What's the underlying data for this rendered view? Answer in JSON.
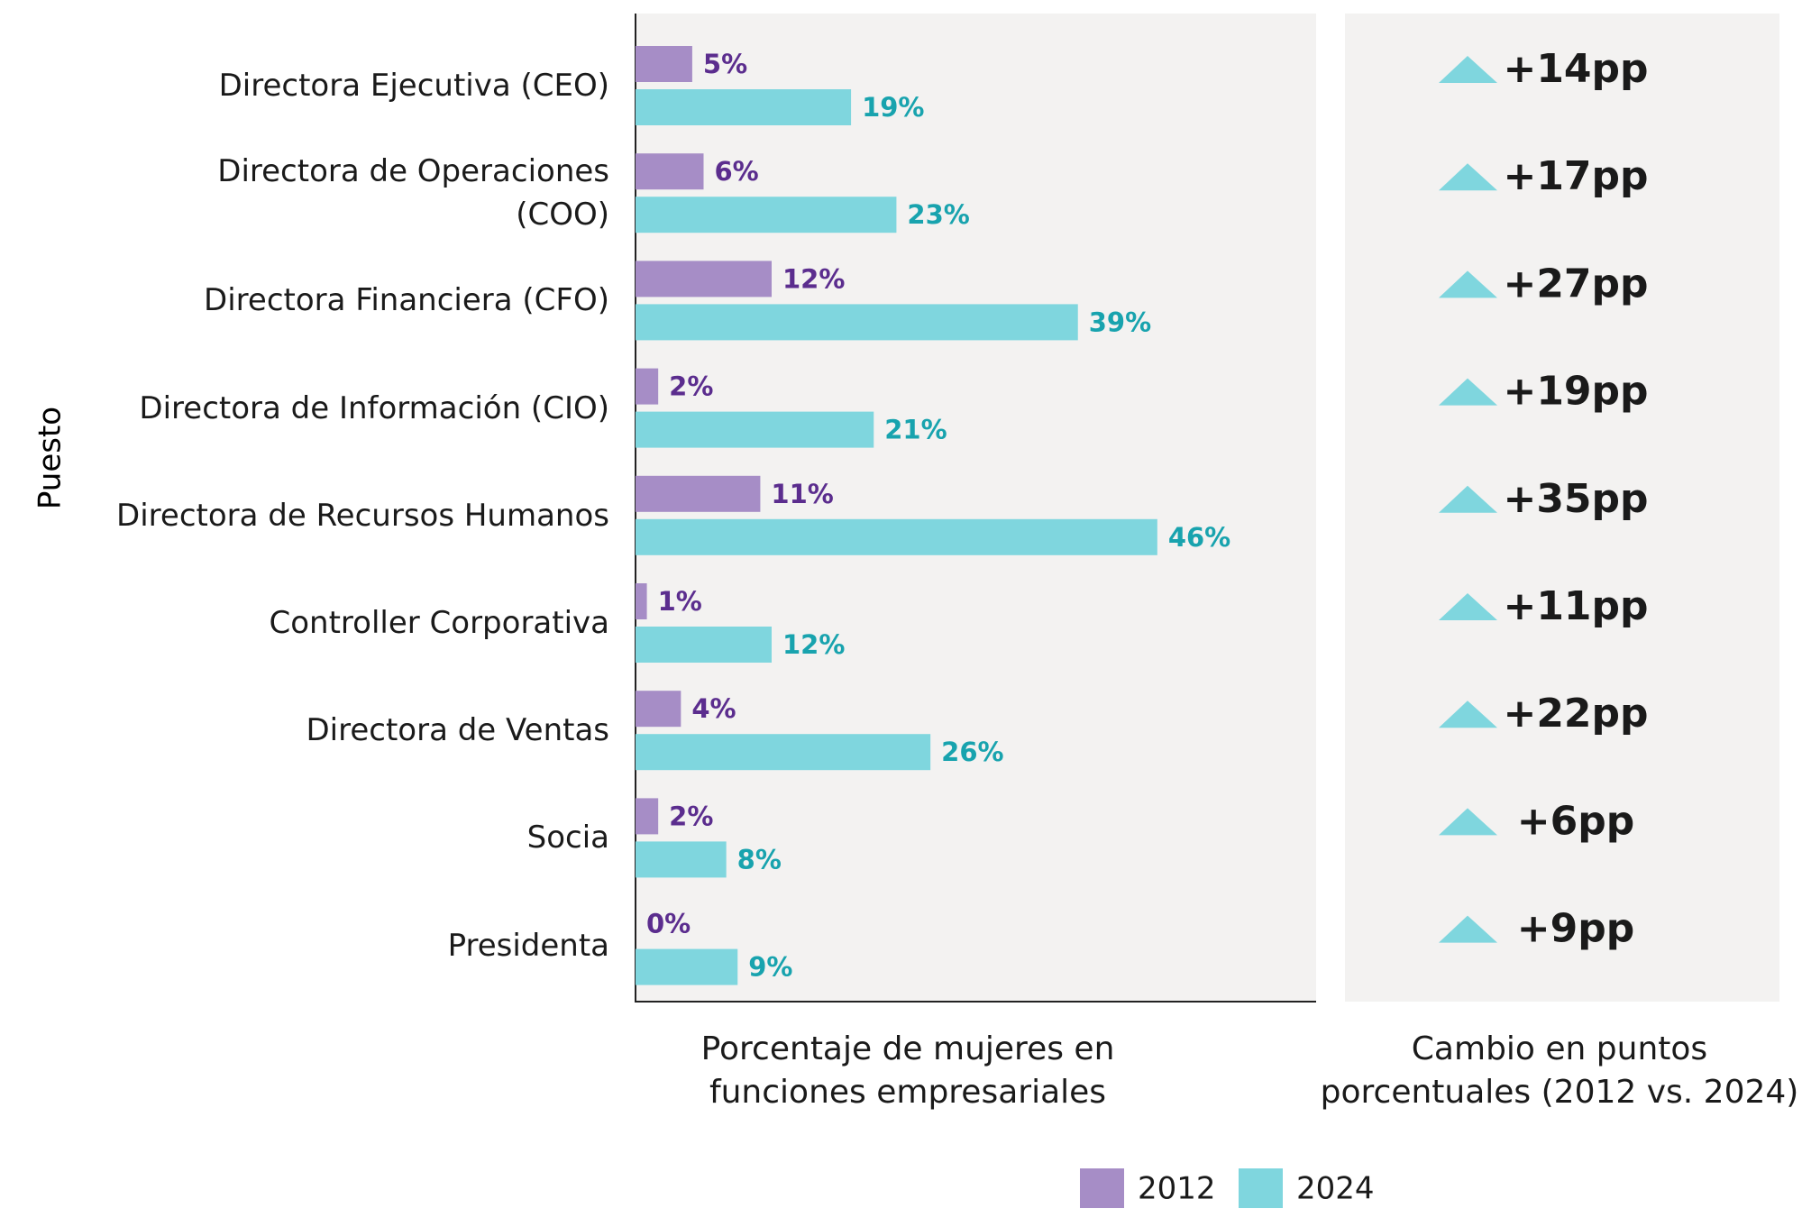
{
  "chart_data": {
    "type": "bar",
    "orientation": "horizontal",
    "y_label": "Puesto",
    "x_label": "Porcentaje de mujeres en funciones empresariales",
    "categories": [
      "Directora Ejecutiva (CEO)",
      "Directora de Operaciones (COO)",
      "Directora Financiera (CFO)",
      "Directora de Información (CIO)",
      "Directora de Recursos Humanos",
      "Controller Corporativa",
      "Directora de Ventas",
      "Socia",
      "Presidenta"
    ],
    "xlim": [
      0,
      60
    ],
    "series": [
      {
        "name": "2012",
        "color": "#a68dc6",
        "label_color": "#5b2d8e",
        "values": [
          5,
          6,
          12,
          2,
          11,
          1,
          4,
          2,
          0
        ],
        "value_labels": [
          "5%",
          "6%",
          "12%",
          "2%",
          "11%",
          "1%",
          "4%",
          "2%",
          "0%"
        ]
      },
      {
        "name": "2024",
        "color": "#7fd6de",
        "label_color": "#18a3ae",
        "values": [
          19,
          23,
          39,
          21,
          46,
          12,
          26,
          8,
          9
        ],
        "value_labels": [
          "19%",
          "23%",
          "39%",
          "21%",
          "46%",
          "12%",
          "26%",
          "8%",
          "9%"
        ]
      }
    ],
    "change": {
      "label": "Cambio en puntos porcentuales (2012 vs. 2024)",
      "color": "#7fd6de",
      "values": [
        14,
        17,
        27,
        19,
        35,
        11,
        22,
        6,
        9
      ],
      "value_labels": [
        "+14pp",
        "+17pp",
        "+27pp",
        "+19pp",
        "+35pp",
        "+11pp",
        "+22pp",
        "+6pp",
        "+9pp"
      ]
    }
  }
}
